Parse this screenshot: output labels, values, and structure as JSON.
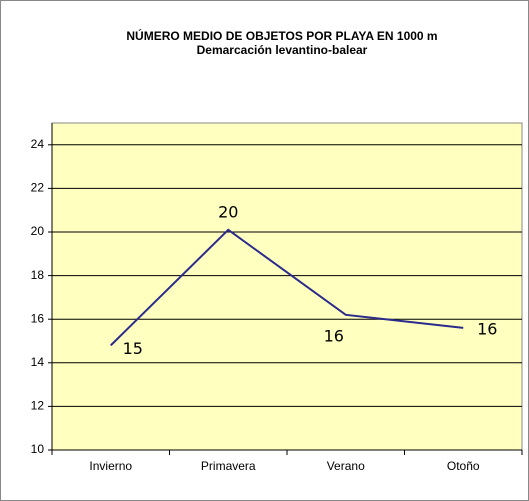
{
  "chart_data": {
    "type": "line",
    "title": "NÚMERO MEDIO DE OBJETOS POR PLAYA EN 1000 m",
    "subtitle": "Demarcación levantino-balear",
    "categories": [
      "Invierno",
      "Primavera",
      "Verano",
      "Otoño"
    ],
    "values": [
      14.8,
      20.1,
      16.2,
      15.6
    ],
    "value_labels": [
      "15",
      "20",
      "16",
      "16"
    ],
    "color": "#2b2b8c",
    "ylim": [
      10,
      25
    ],
    "yticks": [
      10,
      12,
      14,
      16,
      18,
      20,
      22,
      24
    ],
    "grid": true
  }
}
